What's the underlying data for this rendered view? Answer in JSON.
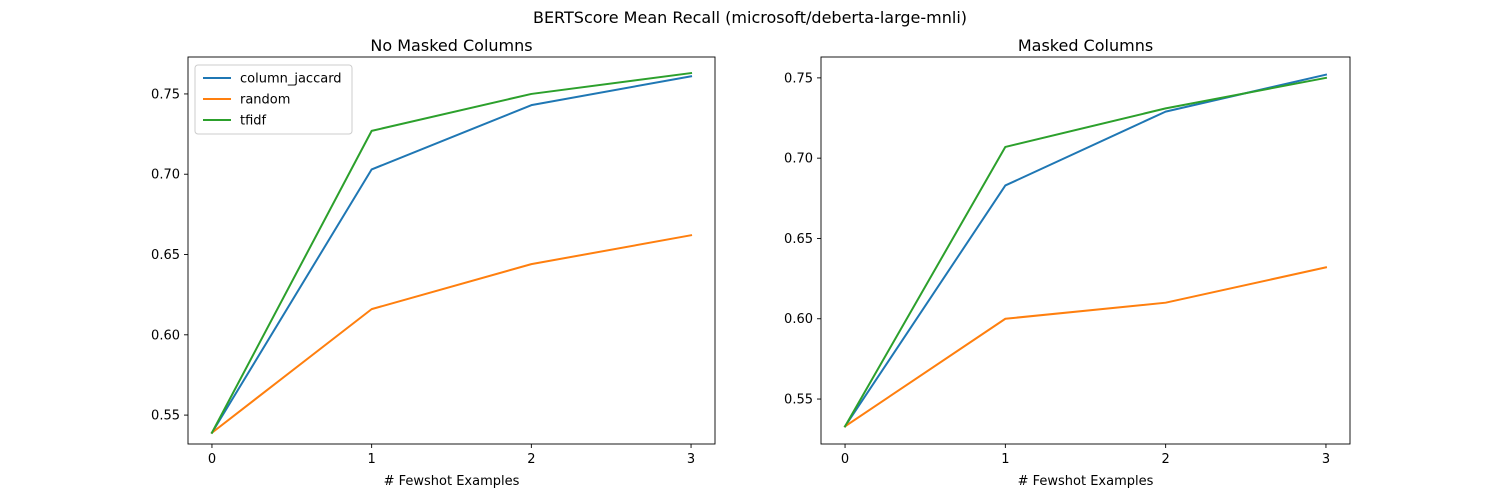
{
  "figure_title": "BERTScore Mean Recall (microsoft/deberta-large-mnli)",
  "colors": {
    "column_jaccard": "#1f77b4",
    "random": "#ff7f0e",
    "tfidf": "#2ca02c"
  },
  "chart_data": [
    {
      "type": "line",
      "title": "No Masked Columns",
      "xlabel": "# Fewshot Examples",
      "ylabel": "",
      "x": [
        0,
        1,
        2,
        3
      ],
      "xlim": [
        -0.15,
        3.15
      ],
      "ylim": [
        0.532,
        0.773
      ],
      "xticks": [
        0,
        1,
        2,
        3
      ],
      "yticks": [
        0.55,
        0.6,
        0.65,
        0.7,
        0.75
      ],
      "yticklabels": [
        "0.55",
        "0.60",
        "0.65",
        "0.70",
        "0.75"
      ],
      "legend": "top-left",
      "series": [
        {
          "name": "column_jaccard",
          "values": [
            0.539,
            0.703,
            0.743,
            0.761
          ]
        },
        {
          "name": "random",
          "values": [
            0.539,
            0.616,
            0.644,
            0.662
          ]
        },
        {
          "name": "tfidf",
          "values": [
            0.539,
            0.727,
            0.75,
            0.763
          ]
        }
      ]
    },
    {
      "type": "line",
      "title": "Masked Columns",
      "xlabel": "# Fewshot Examples",
      "ylabel": "",
      "x": [
        0,
        1,
        2,
        3
      ],
      "xlim": [
        -0.15,
        3.15
      ],
      "ylim": [
        0.522,
        0.763
      ],
      "xticks": [
        0,
        1,
        2,
        3
      ],
      "yticks": [
        0.55,
        0.6,
        0.65,
        0.7,
        0.75
      ],
      "yticklabels": [
        "0.55",
        "0.60",
        "0.65",
        "0.70",
        "0.75"
      ],
      "legend": "none",
      "series": [
        {
          "name": "column_jaccard",
          "values": [
            0.533,
            0.683,
            0.729,
            0.752
          ]
        },
        {
          "name": "random",
          "values": [
            0.533,
            0.6,
            0.61,
            0.632
          ]
        },
        {
          "name": "tfidf",
          "values": [
            0.533,
            0.707,
            0.731,
            0.75
          ]
        }
      ]
    }
  ]
}
